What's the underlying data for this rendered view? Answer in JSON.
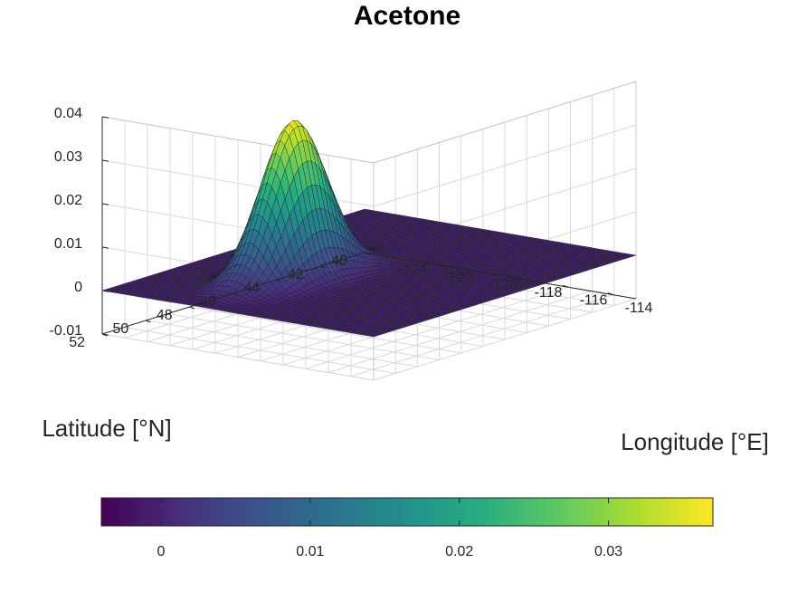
{
  "chart_data": {
    "type": "surface",
    "title": "Acetone",
    "xlabel": "Longitude [°E]",
    "ylabel": "Latitude [°N]",
    "x_ticks": [
      -124,
      -122,
      -120,
      -118,
      -116,
      -114
    ],
    "x_tick_labels": [
      "-124",
      "-122",
      "-120",
      "-118",
      "-116",
      "-114"
    ],
    "y_ticks": [
      40,
      42,
      44,
      46,
      48,
      50,
      52
    ],
    "y_tick_labels": [
      "40",
      "42",
      "44",
      "46",
      "48",
      "50",
      "52"
    ],
    "z_ticks": [
      -0.01,
      0,
      0.01,
      0.02,
      0.03,
      0.04
    ],
    "z_tick_labels": [
      "-0.01",
      "0",
      "0.01",
      "0.02",
      "0.03",
      "0.04"
    ],
    "xlim": [
      -125,
      -113
    ],
    "ylim": [
      40,
      52
    ],
    "zlim": [
      -0.01,
      0.04
    ],
    "grid": true,
    "colormap": "viridis",
    "surface": {
      "peak_value": 0.036,
      "peak_longitude": -120.8,
      "peak_latitude": 47.6,
      "sigma_longitude": 0.8,
      "sigma_latitude": 1.3,
      "baseline": 0
    },
    "colorbar": {
      "orientation": "horizontal",
      "location": "bottom",
      "range": [
        -0.004,
        0.037
      ],
      "ticks": [
        0,
        0.01,
        0.02,
        0.03
      ],
      "tick_labels": [
        "0",
        "0.01",
        "0.02",
        "0.03"
      ]
    }
  }
}
